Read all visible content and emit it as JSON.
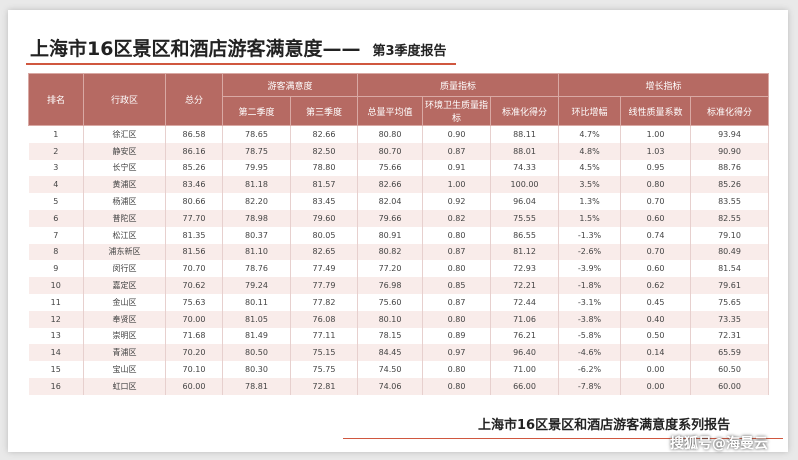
{
  "header": {
    "title_main": "上海市16区景区和酒店游客满意度——",
    "title_sub": "第3季度报告"
  },
  "table": {
    "groups": [
      "游客满意度",
      "质量指标",
      "增长指标"
    ],
    "columns": [
      "排名",
      "行政区",
      "总分",
      "第二季度",
      "第三季度",
      "总量平均值",
      "环境卫生质量指标",
      "标准化得分",
      "环比增幅",
      "线性质量系数",
      "标准化得分"
    ],
    "rows": [
      [
        "1",
        "徐汇区",
        "86.58",
        "78.65",
        "82.66",
        "80.80",
        "0.90",
        "88.11",
        "4.7%",
        "1.00",
        "93.94"
      ],
      [
        "2",
        "静安区",
        "86.16",
        "78.75",
        "82.50",
        "80.70",
        "0.87",
        "88.01",
        "4.8%",
        "1.03",
        "90.90"
      ],
      [
        "3",
        "长宁区",
        "85.26",
        "79.95",
        "78.80",
        "75.66",
        "0.91",
        "74.33",
        "4.5%",
        "0.95",
        "88.76"
      ],
      [
        "4",
        "黄浦区",
        "83.46",
        "81.18",
        "81.57",
        "82.66",
        "1.00",
        "100.00",
        "3.5%",
        "0.80",
        "85.26"
      ],
      [
        "5",
        "杨浦区",
        "80.66",
        "82.20",
        "83.45",
        "82.04",
        "0.92",
        "96.04",
        "1.3%",
        "0.70",
        "83.55"
      ],
      [
        "6",
        "普陀区",
        "77.70",
        "78.98",
        "79.60",
        "79.66",
        "0.82",
        "75.55",
        "1.5%",
        "0.60",
        "82.55"
      ],
      [
        "7",
        "松江区",
        "81.35",
        "80.37",
        "80.05",
        "80.91",
        "0.80",
        "86.55",
        "-1.3%",
        "0.74",
        "79.10"
      ],
      [
        "8",
        "浦东新区",
        "81.56",
        "81.10",
        "82.65",
        "80.82",
        "0.87",
        "81.12",
        "-2.6%",
        "0.70",
        "80.49"
      ],
      [
        "9",
        "闵行区",
        "70.70",
        "78.76",
        "77.49",
        "77.20",
        "0.80",
        "72.93",
        "-3.9%",
        "0.60",
        "81.54"
      ],
      [
        "10",
        "嘉定区",
        "70.62",
        "79.24",
        "77.79",
        "76.98",
        "0.85",
        "72.21",
        "-1.8%",
        "0.62",
        "79.61"
      ],
      [
        "11",
        "金山区",
        "75.63",
        "80.11",
        "77.82",
        "75.60",
        "0.87",
        "72.44",
        "-3.1%",
        "0.45",
        "75.65"
      ],
      [
        "12",
        "奉贤区",
        "70.00",
        "81.05",
        "76.08",
        "80.10",
        "0.80",
        "71.06",
        "-3.8%",
        "0.40",
        "73.35"
      ],
      [
        "13",
        "崇明区",
        "71.68",
        "81.49",
        "77.11",
        "78.15",
        "0.89",
        "76.21",
        "-5.8%",
        "0.50",
        "72.31"
      ],
      [
        "14",
        "青浦区",
        "70.20",
        "80.50",
        "75.15",
        "84.45",
        "0.97",
        "96.40",
        "-4.6%",
        "0.14",
        "65.59"
      ],
      [
        "15",
        "宝山区",
        "70.10",
        "80.30",
        "75.75",
        "74.50",
        "0.80",
        "71.00",
        "-6.2%",
        "0.00",
        "60.50"
      ],
      [
        "16",
        "虹口区",
        "60.00",
        "78.81",
        "72.81",
        "74.06",
        "0.80",
        "66.00",
        "-7.8%",
        "0.00",
        "60.00"
      ]
    ]
  },
  "footer": {
    "report": "上海市16区景区和酒店游客满意度系列报告",
    "watermark": "搜狐号@海曼云"
  }
}
